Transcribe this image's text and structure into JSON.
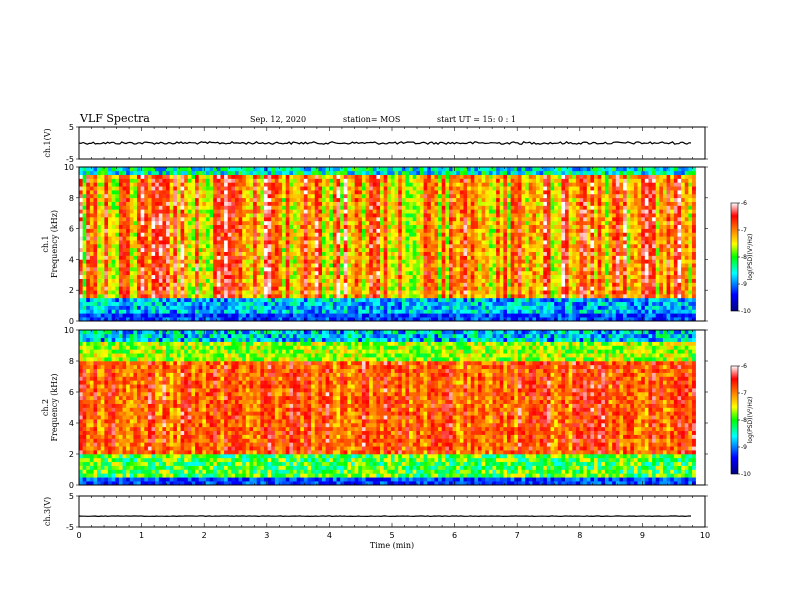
{
  "header": {
    "title": "VLF Spectra",
    "date": "Sep. 12, 2020",
    "station": "station= MOS",
    "start": "start  UT =   15: 0  : 1"
  },
  "colors": {
    "low": "#00007f",
    "mid1": "#0080ff",
    "mid2": "#00ff80",
    "mid3": "#ffff00",
    "high": "#ff0000",
    "top": "#ffffff"
  },
  "chart_data": [
    {
      "type": "line",
      "name": "ch1-waveform",
      "ylabel": "ch.1(V)",
      "ylim": [
        -5,
        5
      ],
      "yticks": [
        "5",
        "-5"
      ],
      "xlim": [
        0,
        10
      ],
      "level": 0
    },
    {
      "type": "heatmap",
      "name": "ch1-spectrogram",
      "ylabel": "ch.1\nFrequency  (kHz)",
      "ylim": [
        0,
        10
      ],
      "yticks": [
        "0",
        "2",
        "4",
        "6",
        "8",
        "10"
      ],
      "xlim": [
        0,
        10
      ],
      "data_xmax": 9.85,
      "colorbar": {
        "label": "log(PSD)(V²/Hz)",
        "range": [
          -10,
          -6
        ],
        "ticks": [
          "-6",
          "-7",
          "-8",
          "-9",
          "-10"
        ]
      }
    },
    {
      "type": "heatmap",
      "name": "ch2-spectrogram",
      "ylabel": "ch.2\nFrequency  (kHz)",
      "ylim": [
        0,
        10
      ],
      "yticks": [
        "0",
        "2",
        "4",
        "6",
        "8",
        "10"
      ],
      "xlim": [
        0,
        10
      ],
      "data_xmax": 9.85,
      "colorbar": {
        "label": "log(PSD)(V²/Hz)",
        "range": [
          -10,
          -6
        ],
        "ticks": [
          "-6",
          "-7",
          "-8",
          "-9",
          "-10"
        ]
      }
    },
    {
      "type": "line",
      "name": "ch3-waveform",
      "ylabel": "ch.3(V)",
      "ylim": [
        -5,
        5
      ],
      "yticks": [
        "5",
        "-5"
      ],
      "xlim": [
        0,
        10
      ],
      "level": -1.5
    }
  ],
  "xaxis": {
    "label": "Time  (min)",
    "ticks": [
      "0",
      "1",
      "2",
      "3",
      "4",
      "5",
      "6",
      "7",
      "8",
      "9",
      "10"
    ]
  }
}
